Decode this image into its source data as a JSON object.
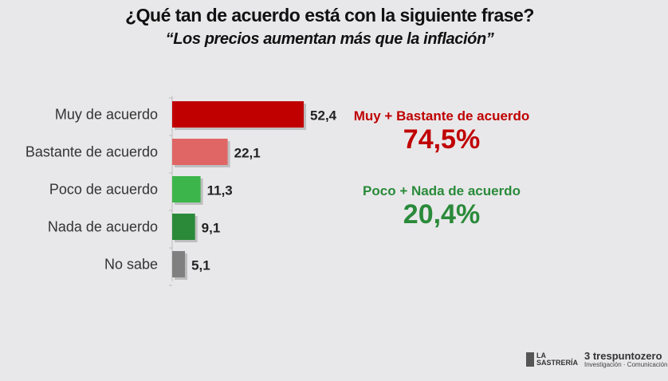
{
  "chart_data": {
    "type": "bar",
    "orientation": "horizontal",
    "title": "¿Qué tan de acuerdo está con la siguiente frase?",
    "subtitle": "“Los precios aumentan más que la inflación”",
    "categories": [
      "Muy de acuerdo",
      "Bastante de acuerdo",
      "Poco de acuerdo",
      "Nada de acuerdo",
      "No sabe"
    ],
    "values": [
      52.4,
      22.1,
      11.3,
      9.1,
      5.1
    ],
    "value_labels": [
      "52,4",
      "22,1",
      "11,3",
      "9,1",
      "5,1"
    ],
    "colors": [
      "#c00000",
      "#e06666",
      "#3cb54a",
      "#2a8a3a",
      "#808080"
    ],
    "grid": false
  },
  "summary": [
    {
      "label": "Muy + Bastante de acuerdo",
      "value": "74,5%",
      "color": "#c00000"
    },
    {
      "label": "Poco + Nada de acuerdo",
      "value": "20,4%",
      "color": "#2a8a3a"
    }
  ],
  "logos": {
    "la_sastreria": "LA SASTRERÍA",
    "trespuntozero": "3 trespuntozero",
    "trespuntozero_tagline": "Investigación · Comunicación"
  }
}
